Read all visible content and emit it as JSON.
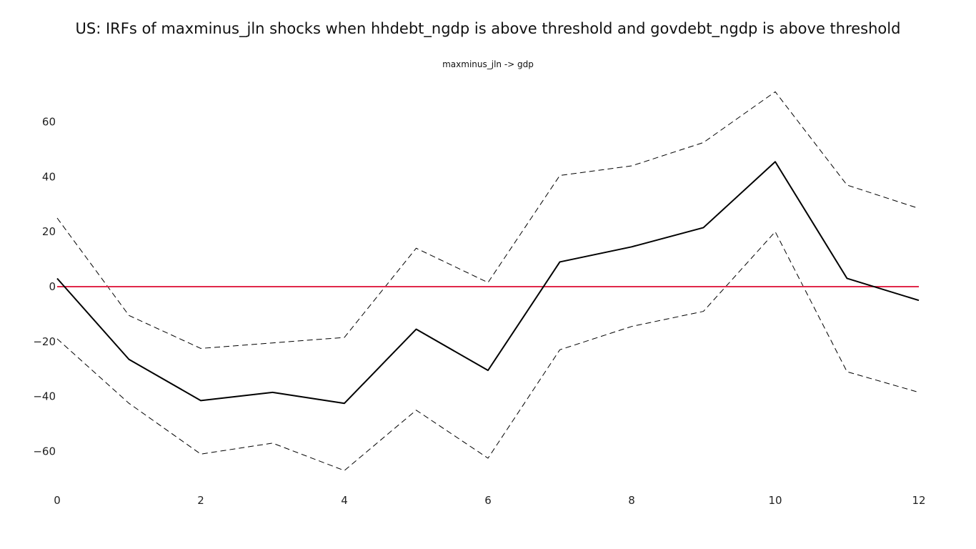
{
  "title": "US: IRFs of maxminus_jln shocks when hhdebt_ngdp is above threshold and govdebt_ngdp is above threshold",
  "chart_data": {
    "type": "line",
    "subplot_title": "maxminus_jln -> gdp",
    "x": [
      0,
      1,
      2,
      3,
      4,
      5,
      6,
      7,
      8,
      9,
      10,
      11,
      12
    ],
    "series": [
      {
        "role": "irf",
        "color": "#000000",
        "style": "solid",
        "values": [
          3,
          -26.5,
          -41.5,
          -38.5,
          -42.5,
          -15.5,
          -30.5,
          9,
          14.5,
          21.5,
          45.5,
          3,
          -5
        ]
      },
      {
        "role": "upper",
        "color": "#000000",
        "style": "dashed",
        "values": [
          25,
          -10.5,
          -22.5,
          -20.5,
          -18.5,
          14,
          1.5,
          40.5,
          44,
          52.5,
          71,
          37,
          28.5
        ]
      },
      {
        "role": "lower",
        "color": "#000000",
        "style": "dashed",
        "values": [
          -19,
          -42.5,
          -61,
          -57,
          -67,
          -45,
          -62.5,
          -23,
          -14.5,
          -9,
          20,
          -31,
          -38.5
        ]
      },
      {
        "role": "zero",
        "color": "#e0284a",
        "style": "solid",
        "values": [
          0,
          0,
          0,
          0,
          0,
          0,
          0,
          0,
          0,
          0,
          0,
          0,
          0
        ]
      }
    ],
    "xticks": [
      "0",
      "2",
      "4",
      "6",
      "8",
      "10",
      "12"
    ],
    "yticks": [
      "60",
      "40",
      "20",
      "0",
      "−20",
      "−40",
      "−60"
    ],
    "xlim": [
      0,
      12
    ],
    "ylim": [
      -70,
      75
    ],
    "grid": false,
    "xlabel": "",
    "ylabel": ""
  }
}
